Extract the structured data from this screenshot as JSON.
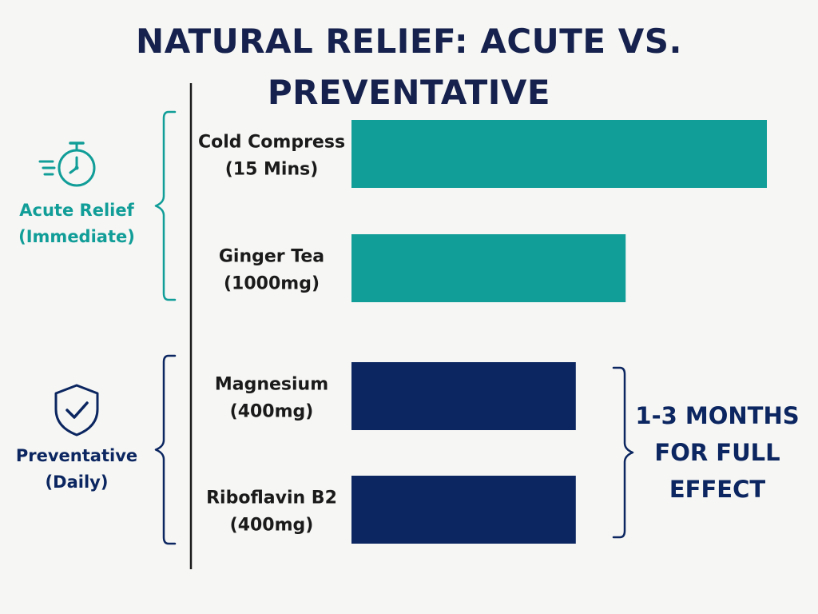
{
  "chart_data": {
    "type": "bar",
    "orientation": "horizontal",
    "title": "NATURAL RELIEF: ACUTE VS. PREVENTATIVE",
    "categories": [
      [
        "Cold Compress",
        "(15 Mins)"
      ],
      [
        "Ginger Tea",
        "(1000mg)"
      ],
      [
        "Magnesium",
        "(400mg)"
      ],
      [
        "Riboflavin B2",
        "(400mg)"
      ]
    ],
    "values": [
      100,
      66,
      54,
      54
    ],
    "xlim": [
      0,
      100
    ],
    "grid": false,
    "groups": [
      {
        "label": [
          "Acute Relief",
          "(Immediate)"
        ],
        "icon": "stopwatch-icon",
        "color": "#119d98",
        "bars": [
          0,
          1
        ]
      },
      {
        "label": [
          "Preventative",
          "(Daily)"
        ],
        "icon": "shield-check-icon",
        "color": "#0b2660",
        "bars": [
          2,
          3
        ]
      }
    ],
    "annotation": {
      "text": [
        "1-3 MONTHS",
        "FOR FULL",
        "EFFECT"
      ],
      "color": "#0b2660",
      "applies_to": [
        2,
        3
      ]
    }
  },
  "colors": {
    "axis": "#1a1a1a",
    "label_text": "#1a1a1a",
    "title_text": "#16224d"
  }
}
